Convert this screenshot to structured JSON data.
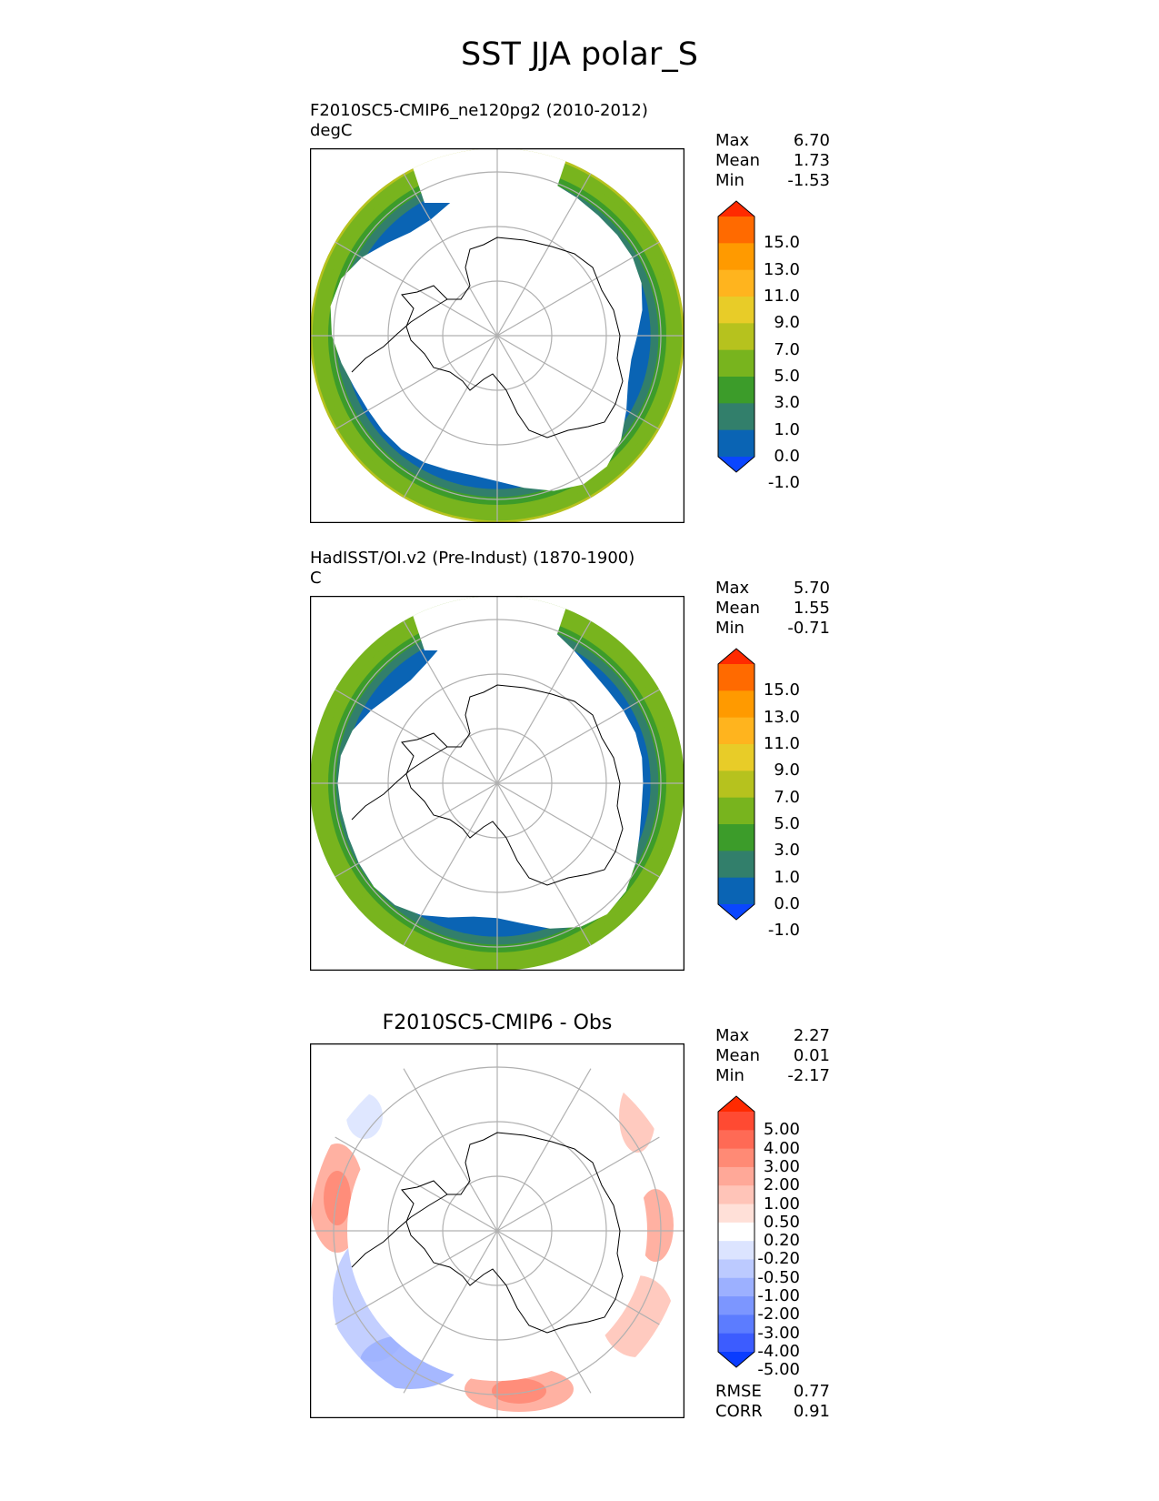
{
  "title": "SST JJA polar_S",
  "chart_data": [
    {
      "type": "heatmap",
      "projection": "south-polar-stereographic",
      "title_line1": "F2010SC5-CMIP6_ne120pg2 (2010-2012)",
      "title_line2": "degC",
      "stats": [
        {
          "label": "Max",
          "value": "6.70"
        },
        {
          "label": "Mean",
          "value": "1.73"
        },
        {
          "label": "Min",
          "value": "-1.53"
        }
      ],
      "colorbar": {
        "ticks": [
          "15.0",
          "13.0",
          "11.0",
          "9.0",
          "7.0",
          "5.0",
          "3.0",
          "1.0",
          "0.0",
          "-1.0"
        ],
        "colors": [
          "#ff2a00",
          "#ff6a00",
          "#ff9a00",
          "#ffb41e",
          "#e8cc28",
          "#b6c21e",
          "#78b41e",
          "#3c9c2a",
          "#327f6b",
          "#0a64b4",
          "#0a46ff"
        ]
      },
      "ring_colors": [
        "#0a64b4",
        "#327f6b",
        "#3c9c2a",
        "#78b41e",
        "#78b41e",
        "#b6c21e"
      ]
    },
    {
      "type": "heatmap",
      "projection": "south-polar-stereographic",
      "title_line1": "HadISST/OI.v2 (Pre-Indust) (1870-1900)",
      "title_line2": "C",
      "stats": [
        {
          "label": "Max",
          "value": "5.70"
        },
        {
          "label": "Mean",
          "value": "1.55"
        },
        {
          "label": "Min",
          "value": "-0.71"
        }
      ],
      "colorbar": {
        "ticks": [
          "15.0",
          "13.0",
          "11.0",
          "9.0",
          "7.0",
          "5.0",
          "3.0",
          "1.0",
          "0.0",
          "-1.0"
        ],
        "colors": [
          "#ff2a00",
          "#ff6a00",
          "#ff9a00",
          "#ffb41e",
          "#e8cc28",
          "#b6c21e",
          "#78b41e",
          "#3c9c2a",
          "#327f6b",
          "#0a64b4",
          "#0a46ff"
        ]
      },
      "ring_colors": [
        "#0a64b4",
        "#327f6b",
        "#3c9c2a",
        "#78b41e",
        "#78b41e",
        "#78b41e"
      ]
    },
    {
      "type": "heatmap",
      "projection": "south-polar-stereographic",
      "title": "F2010SC5-CMIP6 - Obs",
      "stats": [
        {
          "label": "Max",
          "value": "2.27"
        },
        {
          "label": "Mean",
          "value": "0.01"
        },
        {
          "label": "Min",
          "value": "-2.17"
        }
      ],
      "extra_stats": [
        {
          "label": "RMSE",
          "value": "0.77"
        },
        {
          "label": "CORR",
          "value": "0.91"
        }
      ],
      "colorbar": {
        "ticks": [
          "5.00",
          "4.00",
          "3.00",
          "2.00",
          "1.00",
          "0.50",
          "0.20",
          "-0.20",
          "-0.50",
          "-1.00",
          "-2.00",
          "-3.00",
          "-4.00",
          "-5.00"
        ],
        "colors": [
          "#ff2a00",
          "#ff4a32",
          "#ff6a55",
          "#ff8a75",
          "#ffa898",
          "#ffc4b8",
          "#ffe0d8",
          "#ffffff",
          "#dce4ff",
          "#bccaff",
          "#9cb0ff",
          "#7c96ff",
          "#5c7cff",
          "#3c5cff",
          "#0a3cff"
        ]
      }
    }
  ]
}
